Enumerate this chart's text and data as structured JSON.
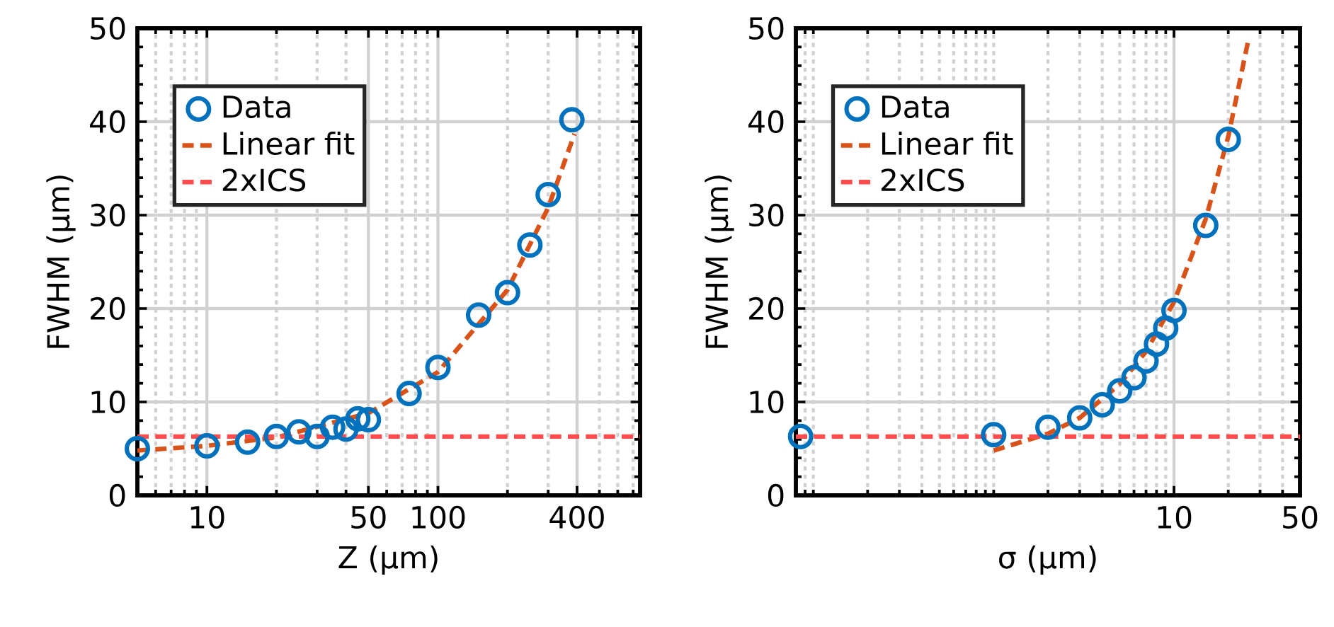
{
  "chart_data": [
    {
      "type": "scatter",
      "xlabel": "Z (μm)",
      "ylabel": "FWHM (μm)",
      "log": "x",
      "grid": true,
      "legend": "top left",
      "xlim": [
        5,
        750
      ],
      "ylim": [
        0,
        50
      ],
      "xticks": [
        10,
        50,
        100,
        400
      ],
      "yticks": [
        0,
        10,
        20,
        30,
        40,
        50
      ],
      "series": [
        {
          "name": "Data",
          "type": "scatter",
          "marker": "circle",
          "color": "#0072bd",
          "x": [
            5,
            10,
            15,
            20,
            25,
            30,
            35,
            40,
            45,
            50,
            75,
            100,
            150,
            200,
            250,
            300,
            380
          ],
          "values": [
            5.0,
            5.3,
            5.7,
            6.3,
            6.8,
            6.3,
            7.3,
            7.1,
            8.2,
            8.1,
            10.9,
            13.7,
            19.3,
            21.7,
            26.8,
            32.2,
            40.2
          ]
        },
        {
          "name": "Linear fit",
          "type": "line",
          "marker": "none",
          "line_style": "dashed",
          "color": "#d95319",
          "x": [
            5,
            10,
            20,
            50,
            100,
            200,
            300,
            390
          ],
          "values": [
            4.8,
            5.3,
            6.2,
            8.8,
            13.2,
            22,
            30.8,
            38.7
          ]
        }
      ],
      "ref_lines": [
        {
          "axis": "y",
          "value": 6.3,
          "label": "2xICS",
          "color": "#ff4d4d",
          "line_style": "dashed"
        }
      ]
    },
    {
      "type": "scatter",
      "xlabel": "σ (μm)",
      "ylabel": "FWHM (μm)",
      "log": "x",
      "grid": true,
      "legend": "top left",
      "xlim": [
        0.08,
        50
      ],
      "ylim": [
        0,
        50
      ],
      "xticks": [
        10,
        50
      ],
      "yticks": [
        0,
        10,
        20,
        30,
        40,
        50
      ],
      "series": [
        {
          "name": "Data",
          "type": "scatter",
          "marker": "circle",
          "color": "#0072bd",
          "x": [
            0.085,
            1,
            2,
            3,
            4,
            5,
            6,
            7,
            8,
            9,
            10,
            15,
            20
          ],
          "values": [
            6.3,
            6.5,
            7.3,
            8.3,
            9.7,
            11.2,
            12.6,
            14.4,
            16.2,
            17.9,
            19.8,
            28.9,
            38.1
          ]
        },
        {
          "name": "Linear fit",
          "type": "line",
          "marker": "none",
          "line_style": "dashed",
          "color": "#d95319",
          "x": [
            1,
            2,
            3,
            5,
            7,
            10,
            15,
            20,
            26
          ],
          "values": [
            4.8,
            6.6,
            8.3,
            11.9,
            15.4,
            20.7,
            29.6,
            38.4,
            49
          ]
        }
      ],
      "ref_lines": [
        {
          "axis": "y",
          "value": 6.3,
          "label": "2xICS",
          "color": "#ff4d4d",
          "line_style": "dashed"
        }
      ]
    }
  ]
}
